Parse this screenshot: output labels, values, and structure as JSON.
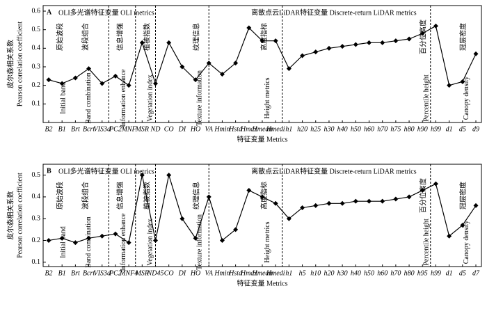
{
  "chart_data": [
    {
      "type": "line",
      "panel": "A",
      "section_titles": [
        "OLI多光谱特征变量  OLI metrics",
        "离散点云LiDAR特征变量  Discrete-return LiDAR metrics"
      ],
      "ylabel": [
        "皮尔森相关系数",
        "Pearson correlation coefficient"
      ],
      "xlabel": "特征变量 Metrics",
      "groups": [
        [
          "原始波段",
          "Initial band"
        ],
        [
          "波段组合",
          "Band combination"
        ],
        [
          "信息增强",
          "Information enhance"
        ],
        [
          "植被指数",
          "Vegetation index"
        ],
        [
          "纹理信息",
          "Texture information"
        ],
        [
          "高度指标",
          "Height metrics"
        ],
        [
          "百分位高度",
          "Percentile height"
        ],
        [
          "冠层密度",
          "Canopy density"
        ]
      ],
      "categories": [
        "B2",
        "B1",
        "Brt",
        "Bcrt",
        "VIS3d",
        "PC2",
        "MNF",
        "MSR",
        "ND",
        "CO",
        "DI",
        "HO",
        "VA",
        "Hmin",
        "Hstd",
        "Hmax",
        "Hmean",
        "Hmedi",
        "h1",
        "h20",
        "h25",
        "h30",
        "h40",
        "h50",
        "h60",
        "h70",
        "h75",
        "h80",
        "h90",
        "h99",
        "d1",
        "d5",
        "d9"
      ],
      "values": [
        0.23,
        0.21,
        0.24,
        0.29,
        0.21,
        0.25,
        0.2,
        0.43,
        0.21,
        0.43,
        0.3,
        0.23,
        0.32,
        0.26,
        0.32,
        0.51,
        0.44,
        0.44,
        0.29,
        0.36,
        0.38,
        0.4,
        0.41,
        0.42,
        0.43,
        0.43,
        0.44,
        0.45,
        0.48,
        0.52,
        0.2,
        0.22,
        0.37
      ],
      "color": "#000000",
      "ylim": [
        0,
        0.63
      ],
      "yticks": [
        0.1,
        0.2,
        0.3,
        0.4,
        0.5,
        0.6
      ]
    },
    {
      "type": "line",
      "panel": "B",
      "section_titles": [
        "OLI多光谱特征变量  OLI metrics",
        "离散点云LiDAR特征变量  Discrete-return LiDAR metrics"
      ],
      "ylabel": [
        "皮尔森相关系数",
        "Pearson correlation coefficient"
      ],
      "xlabel": "特征变量 Metrics",
      "groups": [
        [
          "原始波段",
          "Initial band"
        ],
        [
          "波段组合",
          "Band combination"
        ],
        [
          "信息增强",
          "Information enhance"
        ],
        [
          "植被指数",
          "Vegetation index"
        ],
        [
          "纹理信息",
          "Texture information"
        ],
        [
          "高度指标",
          "Height metrics"
        ],
        [
          "百分位高度",
          "Percentile height"
        ],
        [
          "冠层密度",
          "Canopy density"
        ]
      ],
      "categories": [
        "B2",
        "B1",
        "Brt",
        "Bcrt",
        "VIS3d",
        "PC2",
        "MNF4",
        "MSR",
        "ND45",
        "CO",
        "DI",
        "HO",
        "VA",
        "Hmin",
        "Hstd",
        "Hmax",
        "Hmean",
        "Hmedi",
        "h1",
        "h5",
        "h10",
        "h20",
        "h30",
        "h40",
        "h50",
        "h60",
        "h70",
        "h80",
        "h95",
        "h99",
        "d1",
        "d5",
        "d7"
      ],
      "values": [
        0.2,
        0.21,
        0.19,
        0.21,
        0.22,
        0.23,
        0.19,
        0.5,
        0.2,
        0.5,
        0.3,
        0.21,
        0.4,
        0.2,
        0.25,
        0.43,
        0.4,
        0.37,
        0.3,
        0.35,
        0.36,
        0.37,
        0.37,
        0.38,
        0.38,
        0.38,
        0.39,
        0.4,
        0.43,
        0.46,
        0.22,
        0.27,
        0.36
      ],
      "color": "#000000",
      "ylim": [
        0.08,
        0.55
      ],
      "yticks": [
        0.1,
        0.2,
        0.3,
        0.4,
        0.5
      ]
    }
  ]
}
